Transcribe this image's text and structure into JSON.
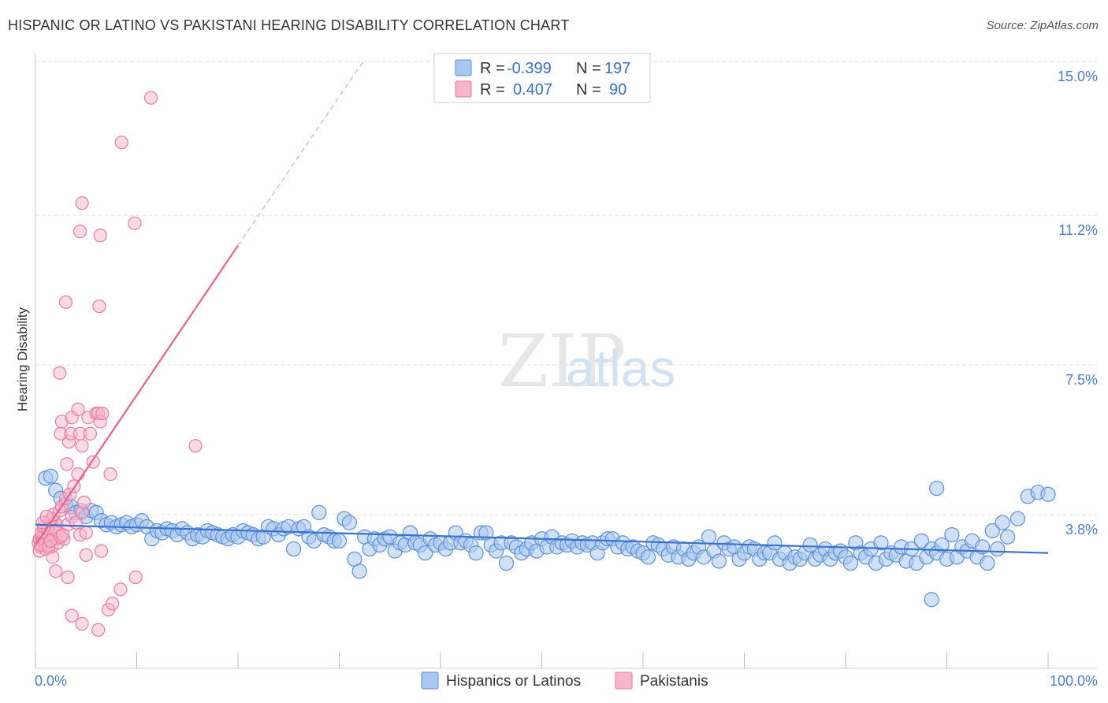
{
  "title": "HISPANIC OR LATINO VS PAKISTANI HEARING DISABILITY CORRELATION CHART",
  "source": "Source: ZipAtlas.com",
  "watermark": {
    "zip": "ZIP",
    "atlas": "atlas"
  },
  "colors": {
    "blue_fill": "#a9c8ef",
    "blue_stroke": "#5b8fd8",
    "blue_line": "#3a72d1",
    "pink_fill": "#f6b7cb",
    "pink_stroke": "#ea7aa0",
    "pink_line": "#e8608f",
    "tick_text": "#4a7cc9",
    "grid": "#dddddd"
  },
  "legend": {
    "rows": [
      {
        "series": "blue",
        "r_label": "R =",
        "r_value": "-0.399",
        "n_label": "N =",
        "n_value": "197"
      },
      {
        "series": "pink",
        "r_label": "R =",
        "r_value": "0.407",
        "n_label": "N =",
        "n_value": "90"
      }
    ]
  },
  "chart_data": {
    "type": "scatter",
    "title": "HISPANIC OR LATINO VS PAKISTANI HEARING DISABILITY CORRELATION CHART",
    "xlabel": "",
    "ylabel": "Hearing Disability",
    "xlim": [
      0,
      100
    ],
    "ylim": [
      0,
      15.5
    ],
    "x_tick_labels": [
      {
        "value": 0,
        "label": "0.0%"
      },
      {
        "value": 100,
        "label": "100.0%"
      }
    ],
    "y_ticks": [
      {
        "value": 3.8,
        "label": "3.8%"
      },
      {
        "value": 7.5,
        "label": "7.5%"
      },
      {
        "value": 11.2,
        "label": "11.2%"
      },
      {
        "value": 15.0,
        "label": "15.0%"
      }
    ],
    "series": [
      {
        "name": "Hispanics or Latinos",
        "color": "blue",
        "trend": {
          "x": [
            0,
            100
          ],
          "y": [
            3.55,
            2.85
          ]
        },
        "points": [
          [
            1,
            4.7
          ],
          [
            1.5,
            4.75
          ],
          [
            2,
            4.4
          ],
          [
            2.5,
            4.2
          ],
          [
            3,
            4.05
          ],
          [
            3.5,
            4.0
          ],
          [
            4,
            3.85
          ],
          [
            4.5,
            3.9
          ],
          [
            5,
            3.75
          ],
          [
            5.5,
            3.9
          ],
          [
            6,
            3.85
          ],
          [
            6.5,
            3.65
          ],
          [
            7,
            3.55
          ],
          [
            7.5,
            3.6
          ],
          [
            8,
            3.5
          ],
          [
            8.5,
            3.55
          ],
          [
            9,
            3.6
          ],
          [
            9.5,
            3.5
          ],
          [
            10,
            3.55
          ],
          [
            10.5,
            3.65
          ],
          [
            11,
            3.5
          ],
          [
            11.5,
            3.2
          ],
          [
            12,
            3.4
          ],
          [
            12.5,
            3.35
          ],
          [
            13,
            3.45
          ],
          [
            13.5,
            3.4
          ],
          [
            14,
            3.3
          ],
          [
            14.5,
            3.45
          ],
          [
            15,
            3.35
          ],
          [
            15.5,
            3.2
          ],
          [
            16,
            3.3
          ],
          [
            16.5,
            3.25
          ],
          [
            17,
            3.4
          ],
          [
            17.5,
            3.35
          ],
          [
            18,
            3.3
          ],
          [
            18.5,
            3.25
          ],
          [
            19,
            3.2
          ],
          [
            19.5,
            3.3
          ],
          [
            20,
            3.25
          ],
          [
            20.5,
            3.4
          ],
          [
            21,
            3.35
          ],
          [
            21.5,
            3.3
          ],
          [
            22,
            3.2
          ],
          [
            22.5,
            3.25
          ],
          [
            23,
            3.5
          ],
          [
            23.5,
            3.45
          ],
          [
            24,
            3.3
          ],
          [
            24.5,
            3.45
          ],
          [
            25,
            3.5
          ],
          [
            25.5,
            2.95
          ],
          [
            26,
            3.45
          ],
          [
            26.5,
            3.5
          ],
          [
            27,
            3.25
          ],
          [
            27.5,
            3.15
          ],
          [
            28,
            3.85
          ],
          [
            28.5,
            3.3
          ],
          [
            29,
            3.25
          ],
          [
            29.5,
            3.15
          ],
          [
            30,
            3.15
          ],
          [
            30.5,
            3.7
          ],
          [
            31,
            3.6
          ],
          [
            31.5,
            2.7
          ],
          [
            32,
            2.4
          ],
          [
            32.5,
            3.25
          ],
          [
            33,
            2.95
          ],
          [
            33.5,
            3.2
          ],
          [
            34,
            3.05
          ],
          [
            34.5,
            3.2
          ],
          [
            35,
            3.25
          ],
          [
            35.5,
            2.9
          ],
          [
            36,
            3.1
          ],
          [
            36.5,
            3.05
          ],
          [
            37,
            3.35
          ],
          [
            37.5,
            3.1
          ],
          [
            38,
            3.05
          ],
          [
            38.5,
            2.85
          ],
          [
            39,
            3.2
          ],
          [
            39.5,
            3.05
          ],
          [
            40,
            3.1
          ],
          [
            40.5,
            2.95
          ],
          [
            41,
            3.1
          ],
          [
            41.5,
            3.35
          ],
          [
            42,
            3.1
          ],
          [
            42.5,
            3.15
          ],
          [
            43,
            3.05
          ],
          [
            43.5,
            2.85
          ],
          [
            44,
            3.35
          ],
          [
            44.5,
            3.35
          ],
          [
            45,
            3.05
          ],
          [
            45.5,
            2.9
          ],
          [
            46,
            3.1
          ],
          [
            46.5,
            2.6
          ],
          [
            47,
            3.1
          ],
          [
            47.5,
            3.0
          ],
          [
            48,
            2.85
          ],
          [
            48.5,
            2.95
          ],
          [
            49,
            3.1
          ],
          [
            49.5,
            2.9
          ],
          [
            50,
            3.2
          ],
          [
            50.5,
            3.0
          ],
          [
            51,
            3.25
          ],
          [
            51.5,
            3.0
          ],
          [
            52,
            3.1
          ],
          [
            52.5,
            3.05
          ],
          [
            53,
            3.15
          ],
          [
            53.5,
            3.0
          ],
          [
            54,
            3.1
          ],
          [
            54.5,
            3.05
          ],
          [
            55,
            3.1
          ],
          [
            55.5,
            2.85
          ],
          [
            56,
            3.1
          ],
          [
            56.5,
            3.2
          ],
          [
            57,
            3.2
          ],
          [
            57.5,
            3.0
          ],
          [
            58,
            3.1
          ],
          [
            58.5,
            2.95
          ],
          [
            59,
            3.0
          ],
          [
            59.5,
            2.9
          ],
          [
            60,
            2.85
          ],
          [
            60.5,
            2.75
          ],
          [
            61,
            3.1
          ],
          [
            61.5,
            3.05
          ],
          [
            62,
            2.95
          ],
          [
            62.5,
            2.8
          ],
          [
            63,
            3.0
          ],
          [
            63.5,
            2.75
          ],
          [
            64,
            2.95
          ],
          [
            64.5,
            2.7
          ],
          [
            65,
            2.85
          ],
          [
            65.5,
            3.0
          ],
          [
            66,
            2.75
          ],
          [
            66.5,
            3.25
          ],
          [
            67,
            2.9
          ],
          [
            67.5,
            2.65
          ],
          [
            68,
            3.1
          ],
          [
            68.5,
            2.95
          ],
          [
            69,
            3.0
          ],
          [
            69.5,
            2.7
          ],
          [
            70,
            2.85
          ],
          [
            70.5,
            3.0
          ],
          [
            71,
            2.95
          ],
          [
            71.5,
            2.7
          ],
          [
            72,
            2.85
          ],
          [
            72.5,
            2.85
          ],
          [
            73,
            3.1
          ],
          [
            73.5,
            2.7
          ],
          [
            74,
            2.85
          ],
          [
            74.5,
            2.6
          ],
          [
            75,
            2.75
          ],
          [
            75.5,
            2.7
          ],
          [
            76,
            2.85
          ],
          [
            76.5,
            3.05
          ],
          [
            77,
            2.7
          ],
          [
            77.5,
            2.8
          ],
          [
            78,
            2.95
          ],
          [
            78.5,
            2.7
          ],
          [
            79,
            2.85
          ],
          [
            79.5,
            2.9
          ],
          [
            80,
            2.75
          ],
          [
            80.5,
            2.6
          ],
          [
            81,
            3.1
          ],
          [
            81.5,
            2.85
          ],
          [
            82,
            2.75
          ],
          [
            82.5,
            2.95
          ],
          [
            83,
            2.6
          ],
          [
            83.5,
            3.1
          ],
          [
            84,
            2.7
          ],
          [
            84.5,
            2.85
          ],
          [
            85,
            2.8
          ],
          [
            85.5,
            3.0
          ],
          [
            86,
            2.65
          ],
          [
            86.5,
            2.95
          ],
          [
            87,
            2.6
          ],
          [
            87.5,
            3.15
          ],
          [
            88,
            2.75
          ],
          [
            88.5,
            2.95
          ],
          [
            89,
            2.85
          ],
          [
            89.5,
            3.05
          ],
          [
            90,
            2.7
          ],
          [
            90.5,
            3.3
          ],
          [
            91,
            2.75
          ],
          [
            91.5,
            3.0
          ],
          [
            92,
            2.9
          ],
          [
            92.5,
            3.15
          ],
          [
            93,
            2.75
          ],
          [
            93.5,
            3.0
          ],
          [
            94,
            2.6
          ],
          [
            94.5,
            3.4
          ],
          [
            95,
            2.95
          ],
          [
            95.5,
            3.6
          ],
          [
            96,
            3.25
          ],
          [
            97,
            3.7
          ],
          [
            98,
            4.25
          ],
          [
            99,
            4.35
          ],
          [
            100,
            4.3
          ],
          [
            88.5,
            1.7
          ],
          [
            89,
            4.45
          ]
        ]
      },
      {
        "name": "Pakistanis",
        "color": "pink",
        "trend": {
          "x": [
            0,
            20
          ],
          "y": [
            3.05,
            10.45
          ]
        },
        "trend_extension": {
          "x": [
            20,
            32.5
          ],
          "y": [
            10.45,
            15.05
          ]
        },
        "points": [
          [
            0.3,
            3.1
          ],
          [
            0.4,
            3.2
          ],
          [
            0.5,
            3.0
          ],
          [
            0.6,
            3.25
          ],
          [
            0.7,
            3.15
          ],
          [
            0.8,
            3.35
          ],
          [
            0.9,
            3.05
          ],
          [
            1.0,
            3.3
          ],
          [
            1.1,
            3.2
          ],
          [
            1.2,
            3.4
          ],
          [
            1.3,
            3.1
          ],
          [
            1.4,
            3.25
          ],
          [
            1.5,
            3.5
          ],
          [
            1.6,
            3.0
          ],
          [
            1.7,
            3.3
          ],
          [
            1.8,
            3.45
          ],
          [
            1.9,
            3.6
          ],
          [
            2.0,
            3.2
          ],
          [
            2.1,
            3.55
          ],
          [
            2.2,
            3.35
          ],
          [
            0.4,
            2.9
          ],
          [
            0.6,
            3.35
          ],
          [
            0.8,
            3.5
          ],
          [
            1.0,
            2.95
          ],
          [
            1.2,
            3.45
          ],
          [
            1.4,
            3.65
          ],
          [
            1.6,
            3.7
          ],
          [
            1.8,
            3.8
          ],
          [
            2.0,
            3.4
          ],
          [
            2.2,
            3.1
          ],
          [
            2.4,
            3.9
          ],
          [
            2.6,
            4.0
          ],
          [
            2.8,
            3.2
          ],
          [
            3.0,
            4.2
          ],
          [
            3.2,
            3.55
          ],
          [
            3.4,
            4.3
          ],
          [
            3.6,
            3.75
          ],
          [
            3.8,
            4.5
          ],
          [
            4.0,
            3.6
          ],
          [
            4.2,
            4.8
          ],
          [
            4.4,
            3.3
          ],
          [
            4.6,
            3.85
          ],
          [
            4.8,
            4.1
          ],
          [
            5.0,
            3.35
          ],
          [
            0.5,
            3.05
          ],
          [
            0.7,
            3.6
          ],
          [
            1.1,
            3.75
          ],
          [
            1.3,
            3.0
          ],
          [
            1.5,
            3.15
          ],
          [
            1.7,
            2.75
          ],
          [
            2.5,
            3.25
          ],
          [
            2.7,
            3.3
          ],
          [
            3.1,
            5.05
          ],
          [
            3.3,
            5.6
          ],
          [
            2.5,
            5.8
          ],
          [
            2.6,
            6.1
          ],
          [
            3.5,
            5.8
          ],
          [
            3.6,
            6.2
          ],
          [
            4.2,
            6.4
          ],
          [
            4.4,
            5.8
          ],
          [
            4.6,
            5.5
          ],
          [
            5.2,
            6.2
          ],
          [
            5.4,
            5.8
          ],
          [
            6.0,
            6.3
          ],
          [
            6.2,
            6.3
          ],
          [
            6.4,
            6.1
          ],
          [
            6.6,
            6.3
          ],
          [
            5.7,
            5.1
          ],
          [
            7.4,
            4.8
          ],
          [
            2.4,
            7.3
          ],
          [
            3.0,
            9.05
          ],
          [
            4.4,
            10.8
          ],
          [
            4.6,
            11.5
          ],
          [
            6.4,
            10.7
          ],
          [
            6.3,
            8.95
          ],
          [
            8.5,
            13.0
          ],
          [
            9.8,
            11.0
          ],
          [
            11.4,
            14.1
          ],
          [
            15.8,
            5.5
          ],
          [
            2.0,
            2.4
          ],
          [
            3.2,
            2.25
          ],
          [
            3.6,
            1.3
          ],
          [
            4.6,
            1.1
          ],
          [
            6.2,
            0.95
          ],
          [
            6.5,
            2.9
          ],
          [
            7.2,
            1.45
          ],
          [
            7.6,
            1.6
          ],
          [
            8.4,
            1.95
          ],
          [
            9.9,
            2.25
          ],
          [
            5.0,
            2.8
          ]
        ]
      }
    ]
  },
  "bottom_legend": {
    "items": [
      {
        "series": "blue",
        "label": "Hispanics or Latinos"
      },
      {
        "series": "pink",
        "label": "Pakistanis"
      }
    ]
  }
}
